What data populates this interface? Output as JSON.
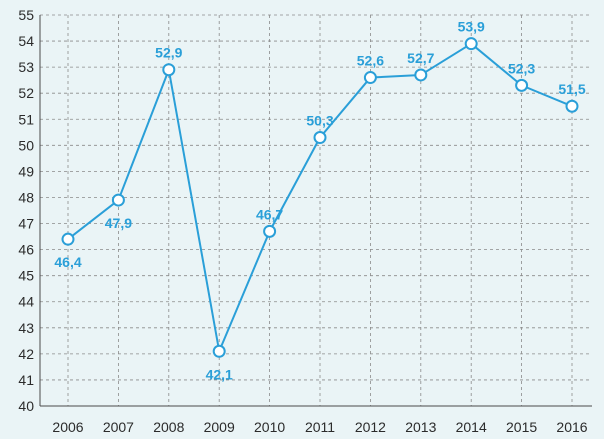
{
  "chart_data": {
    "type": "line",
    "x": [
      "2006",
      "2007",
      "2008",
      "2009",
      "2010",
      "2011",
      "2012",
      "2013",
      "2014",
      "2015",
      "2016"
    ],
    "series": [
      {
        "values": [
          46.4,
          47.9,
          52.9,
          42.1,
          46.7,
          50.3,
          52.6,
          52.7,
          53.9,
          52.3,
          51.5
        ],
        "data_labels": [
          "46,4",
          "47,9",
          "52,9",
          "42,1",
          "46,7",
          "50,3",
          "52,6",
          "52,7",
          "53,9",
          "52,3",
          "51,5"
        ]
      }
    ],
    "ylim": [
      40,
      55
    ],
    "y_ticks": [
      40,
      41,
      42,
      43,
      44,
      45,
      46,
      47,
      48,
      49,
      50,
      51,
      52,
      53,
      54,
      55
    ],
    "title": "",
    "xlabel": "",
    "ylabel": "",
    "grid": "dashed vertical and horizontal",
    "colors": {
      "line": "#2a9fd8",
      "marker_fill": "#ffffff",
      "label": "#2a9fd8",
      "grid": "#8a8a8a",
      "axis": "#4a4a4a",
      "background": "#eaf4f6"
    }
  }
}
